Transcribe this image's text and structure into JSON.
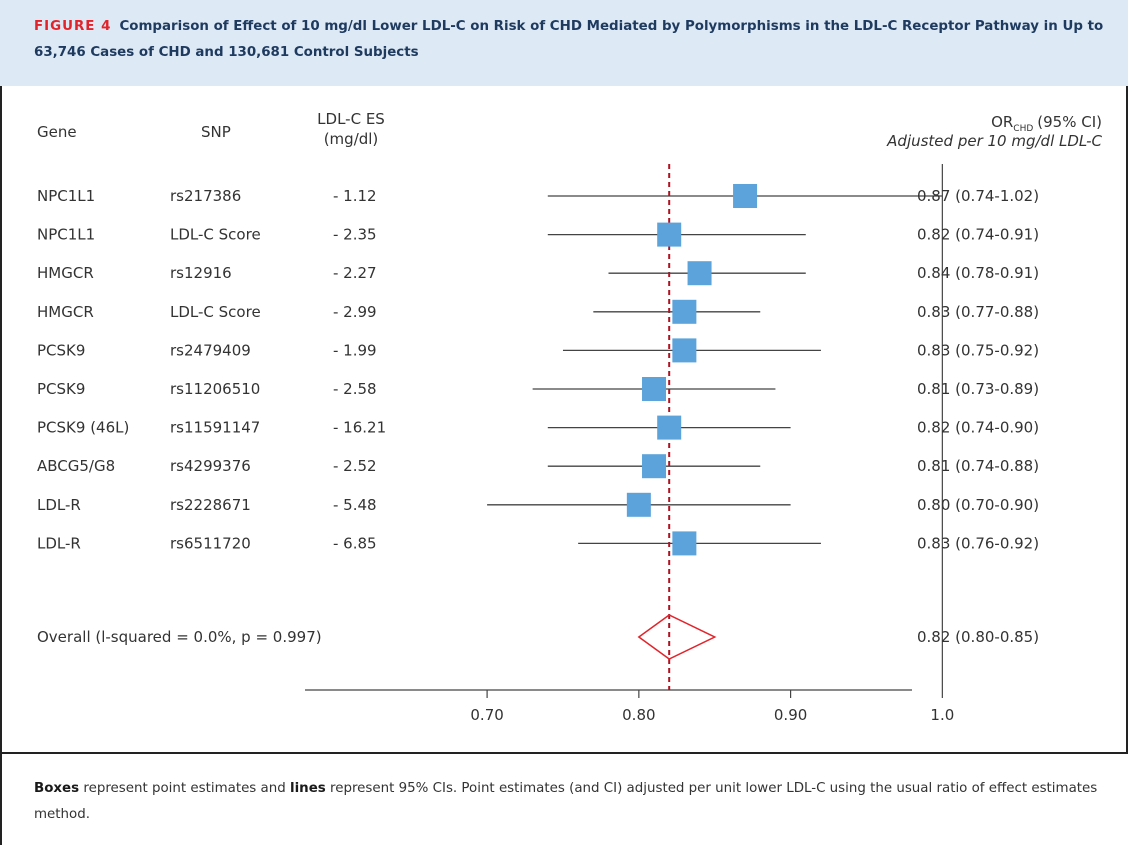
{
  "figure": {
    "label": "FIGURE 4",
    "title": "Comparison of Effect of 10 mg/dl Lower LDL-C on Risk of CHD Mediated by Polymorphisms in the LDL-C Receptor Pathway in Up to 63,746 Cases of CHD and 130,681 Control Subjects"
  },
  "columns": {
    "gene": "Gene",
    "snp": "SNP",
    "es_line1": "LDL-C ES",
    "es_line2": "(mg/dl)",
    "or_main": "OR",
    "or_sub": "CHD",
    "or_ci": "(95% CI)",
    "or_note": "Adjusted per 10 mg/dl LDL-C"
  },
  "chart_data": {
    "type": "forest",
    "xlim": [
      0.58,
      0.98
    ],
    "xticks": [
      0.7,
      0.8,
      0.9,
      1.0
    ],
    "xtick_labels": [
      "0.70",
      "0.80",
      "0.90",
      "1.0"
    ],
    "null_value": 1.0,
    "pooled_reference": 0.82,
    "rows": [
      {
        "gene": "NPC1L1",
        "snp": "rs217386",
        "es": "- 1.12",
        "or": 0.87,
        "lo": 0.74,
        "hi": 1.02,
        "label": "0.87 (0.74-1.02)"
      },
      {
        "gene": "NPC1L1",
        "snp": "LDL-C Score",
        "es": "- 2.35",
        "or": 0.82,
        "lo": 0.74,
        "hi": 0.91,
        "label": "0.82 (0.74-0.91)"
      },
      {
        "gene": "HMGCR",
        "snp": "rs12916",
        "es": "- 2.27",
        "or": 0.84,
        "lo": 0.78,
        "hi": 0.91,
        "label": "0.84 (0.78-0.91)"
      },
      {
        "gene": "HMGCR",
        "snp": "LDL-C Score",
        "es": "- 2.99",
        "or": 0.83,
        "lo": 0.77,
        "hi": 0.88,
        "label": "0.83 (0.77-0.88)"
      },
      {
        "gene": "PCSK9",
        "snp": "rs2479409",
        "es": "- 1.99",
        "or": 0.83,
        "lo": 0.75,
        "hi": 0.92,
        "label": "0.83 (0.75-0.92)"
      },
      {
        "gene": "PCSK9",
        "snp": "rs11206510",
        "es": "- 2.58",
        "or": 0.81,
        "lo": 0.73,
        "hi": 0.89,
        "label": "0.81 (0.73-0.89)"
      },
      {
        "gene": "PCSK9 (46L)",
        "snp": "rs11591147",
        "es": "- 16.21",
        "or": 0.82,
        "lo": 0.74,
        "hi": 0.9,
        "label": "0.82 (0.74-0.90)"
      },
      {
        "gene": "ABCG5/G8",
        "snp": "rs4299376",
        "es": "- 2.52",
        "or": 0.81,
        "lo": 0.74,
        "hi": 0.88,
        "label": "0.81 (0.74-0.88)"
      },
      {
        "gene": "LDL-R",
        "snp": "rs2228671",
        "es": "- 5.48",
        "or": 0.8,
        "lo": 0.7,
        "hi": 0.9,
        "label": "0.80 (0.70-0.90)"
      },
      {
        "gene": "LDL-R",
        "snp": "rs6511720",
        "es": "- 6.85",
        "or": 0.83,
        "lo": 0.76,
        "hi": 0.92,
        "label": "0.83 (0.76-0.92)"
      }
    ],
    "overall": {
      "text": "Overall (l-squared = 0.0%, p = 0.997)",
      "or": 0.82,
      "lo": 0.8,
      "hi": 0.85,
      "label": "0.82 (0.80-0.85)"
    },
    "colors": {
      "box": "#5ba3da",
      "diamond": "#e2232a",
      "reference": "#b01020",
      "line": "#444444"
    }
  },
  "caption": {
    "bold1": "Boxes",
    "text1": " represent point estimates and ",
    "bold2": "lines",
    "text2": " represent 95% CIs. Point estimates (and CI) adjusted per unit lower LDL-C using the usual ratio of effect estimates method."
  }
}
